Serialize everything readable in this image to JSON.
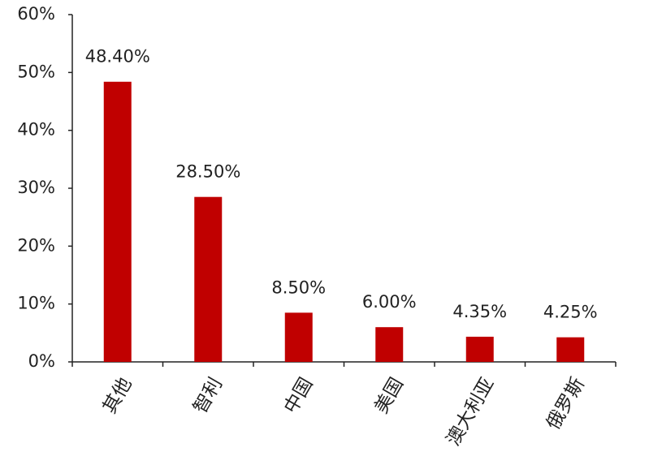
{
  "chart_data": {
    "type": "bar",
    "categories": [
      "其他",
      "智利",
      "中国",
      "美国",
      "澳大利亚",
      "俄罗斯"
    ],
    "values": [
      48.4,
      28.5,
      8.5,
      6.0,
      4.35,
      4.25
    ],
    "value_labels": [
      "48.40%",
      "28.50%",
      "8.50%",
      "6.00%",
      "4.35%",
      "4.25%"
    ],
    "color": "#c00000",
    "ylim": [
      0,
      60
    ],
    "yticks": [
      {
        "value": 0,
        "label": "0%"
      },
      {
        "value": 10,
        "label": "10%"
      },
      {
        "value": 20,
        "label": "20%"
      },
      {
        "value": 30,
        "label": "30%"
      },
      {
        "value": 40,
        "label": "40%"
      },
      {
        "value": 50,
        "label": "50%"
      },
      {
        "value": 60,
        "label": "60%"
      }
    ],
    "grid": false
  }
}
